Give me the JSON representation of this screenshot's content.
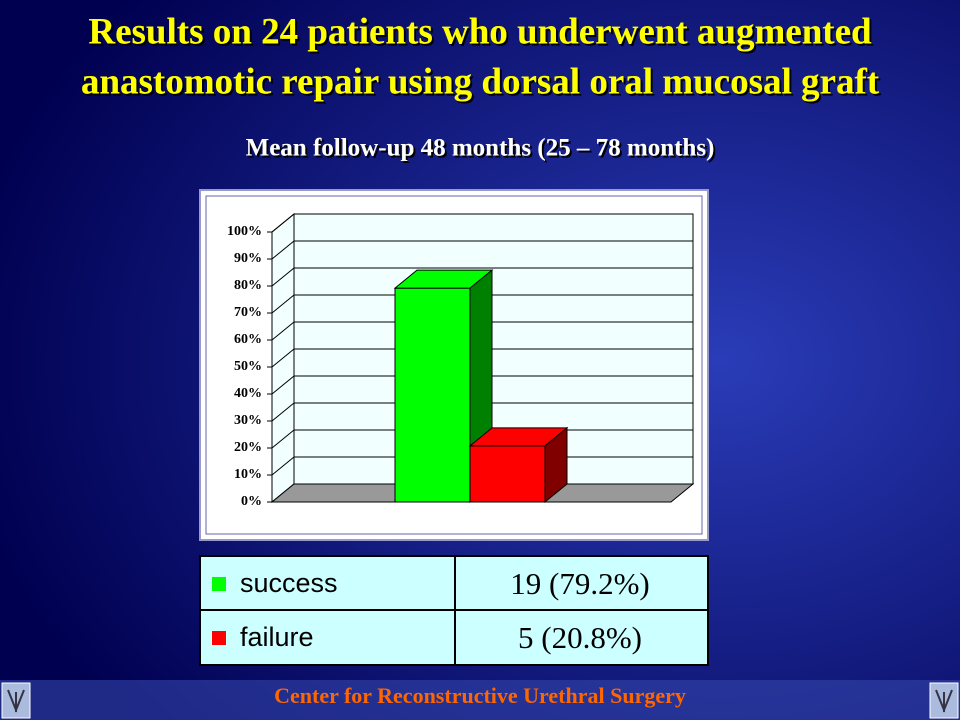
{
  "chart_data": {
    "type": "bar3d",
    "title": [
      "Results on 24 patients who underwent augmented",
      "anastomotic repair using dorsal oral mucosal graft"
    ],
    "subtitle": "Mean follow-up 48 months (25 – 78 months)",
    "categories": [
      null
    ],
    "series": [
      {
        "name": "success",
        "color": "#00ff00",
        "side_color": "#008000",
        "values": [
          79.2
        ],
        "value_labels": [
          "19 (79.2%)"
        ]
      },
      {
        "name": "failure",
        "color": "#ff0000",
        "side_color": "#800000",
        "values": [
          20.8
        ],
        "value_labels": [
          "5 (20.8%)"
        ]
      }
    ],
    "ylim": [
      0,
      100
    ],
    "yticks": [
      {
        "value": 0,
        "label": "0%"
      },
      {
        "value": 10,
        "label": "10%"
      },
      {
        "value": 20,
        "label": "20%"
      },
      {
        "value": 30,
        "label": "30%"
      },
      {
        "value": 40,
        "label": "40%"
      },
      {
        "value": 50,
        "label": "50%"
      },
      {
        "value": 60,
        "label": "60%"
      },
      {
        "value": 70,
        "label": "70%"
      },
      {
        "value": 80,
        "label": "80%"
      },
      {
        "value": 90,
        "label": "90%"
      },
      {
        "value": 100,
        "label": "100%"
      }
    ],
    "grid": true
  },
  "footer": "Center for Reconstructive Urethral Surgery"
}
